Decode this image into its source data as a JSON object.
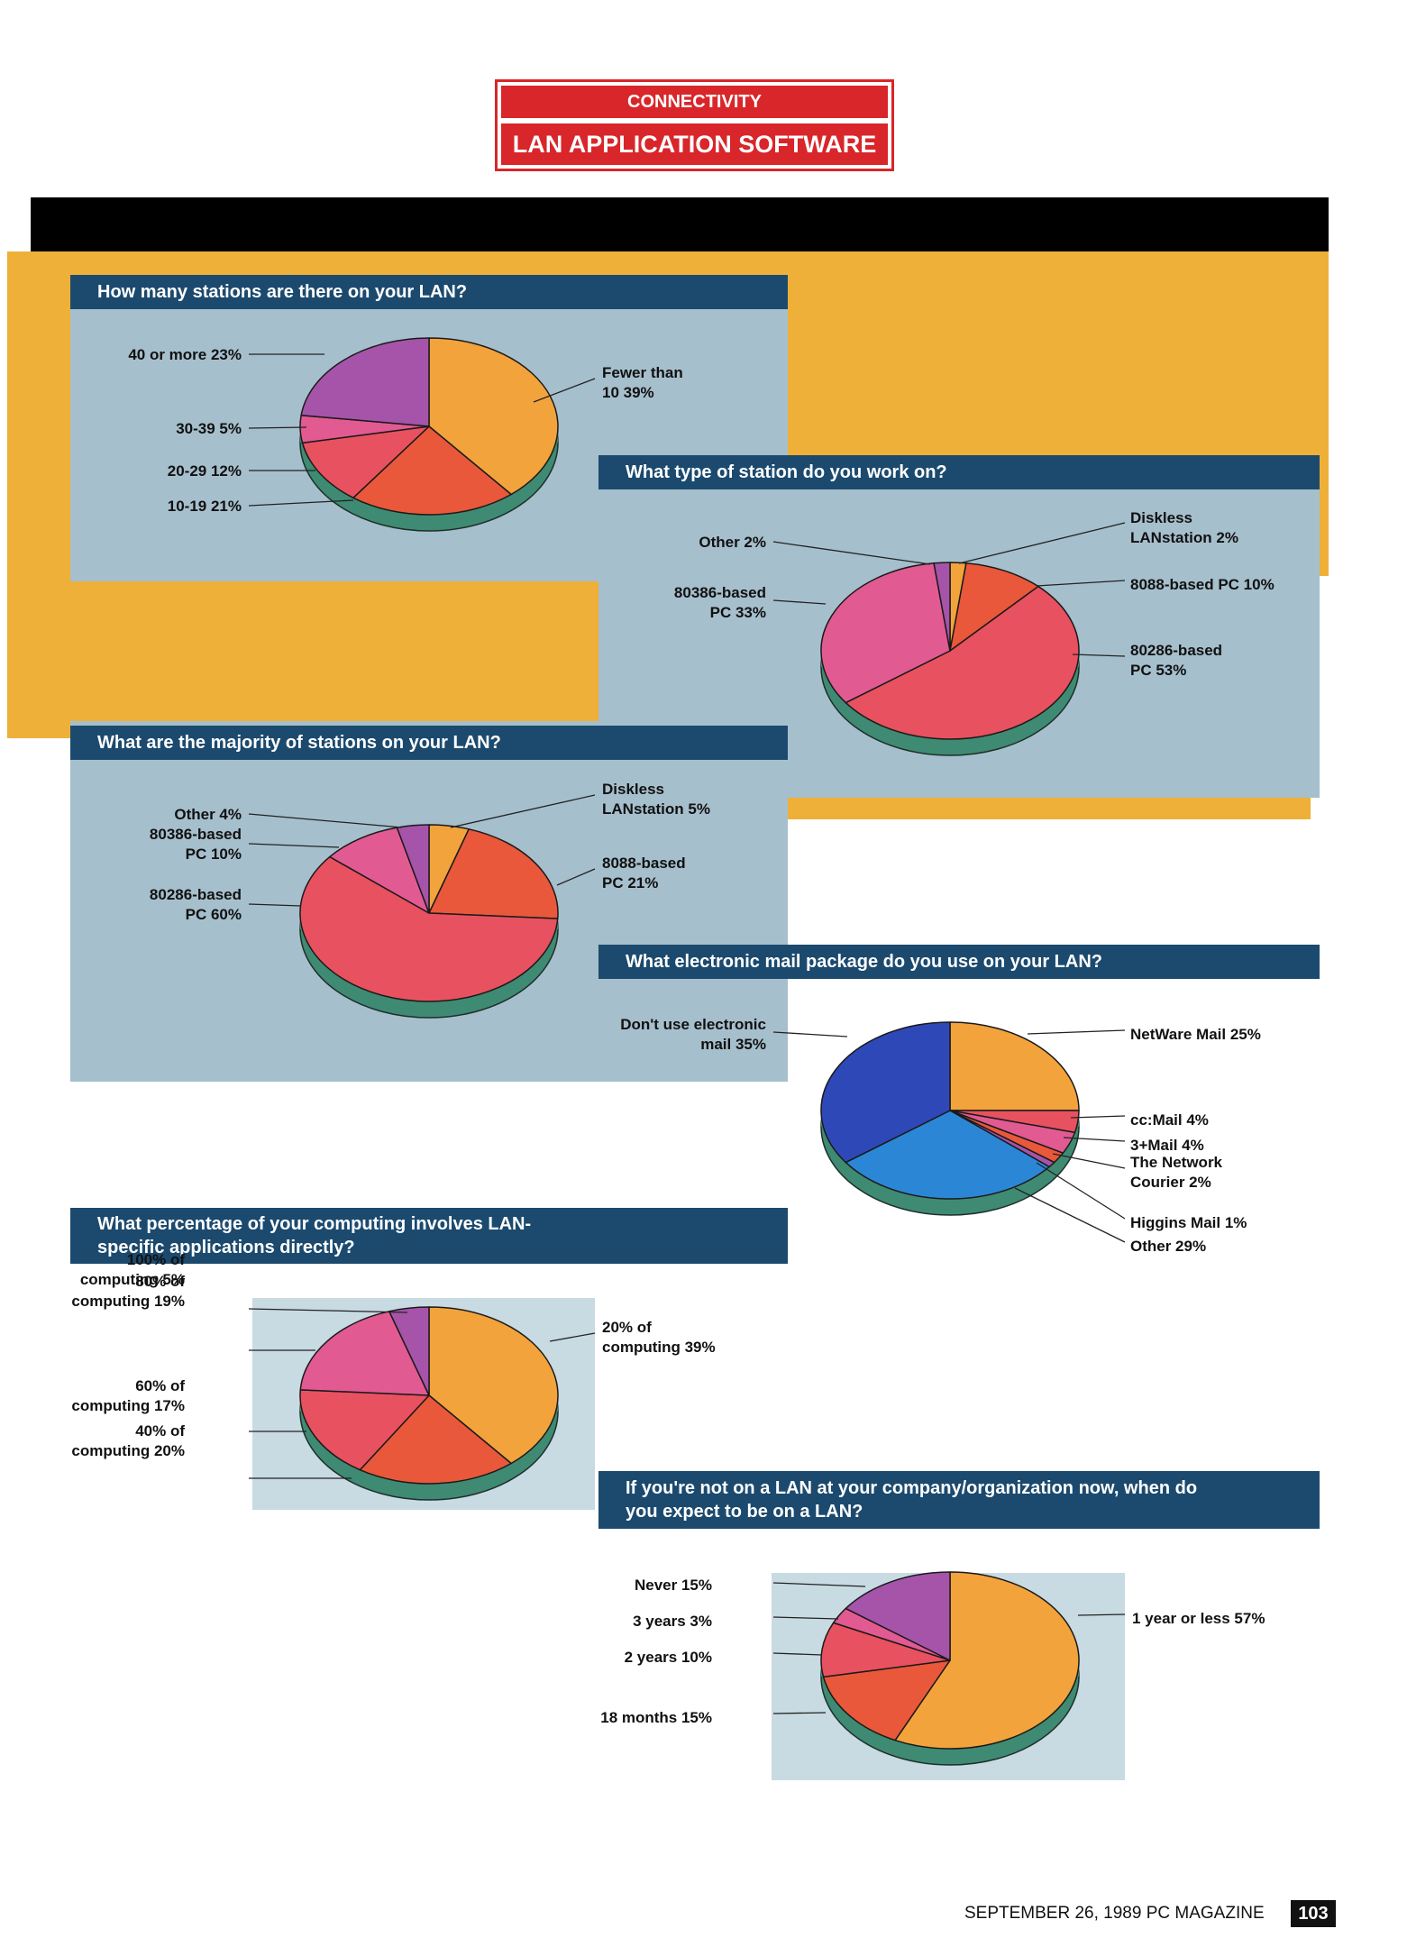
{
  "header": {
    "section": "CONNECTIVITY",
    "title": "LAN APPLICATION SOFTWARE"
  },
  "footer": {
    "text": "SEPTEMBER 26, 1989  PC MAGAZINE",
    "page": "103"
  },
  "colors": {
    "orange": "#f2a33c",
    "redorange": "#e9583a",
    "red": "#e8515f",
    "pink": "#e25a92",
    "purple": "#a554a9",
    "blue": "#2f48b8",
    "lightblue": "#2c86d6",
    "shadow": "#3f8a72",
    "bar": "#1c4a6e",
    "grey": "#a6bfcc",
    "panel": "#eeb038"
  },
  "chart_data": [
    {
      "type": "pie",
      "title": "How many stations are there on your LAN?",
      "categories": [
        "Fewer than 10",
        "10-19",
        "20-29",
        "30-39",
        "40 or more"
      ],
      "values": [
        39,
        21,
        12,
        5,
        23
      ],
      "labels": [
        {
          "text": [
            "Fewer than",
            "10  39%"
          ]
        },
        {
          "text": [
            "10-19  21%"
          ]
        },
        {
          "text": [
            "20-29  12%"
          ]
        },
        {
          "text": [
            "30-39  5%"
          ]
        },
        {
          "text": [
            "40 or more  23%"
          ]
        }
      ]
    },
    {
      "type": "pie",
      "title": "What type of station do you work on?",
      "categories": [
        "Diskless LANstation",
        "8088-based PC",
        "80286-based PC",
        "80386-based PC",
        "Other"
      ],
      "values": [
        2,
        10,
        53,
        33,
        2
      ],
      "labels": [
        {
          "text": [
            "Diskless",
            "LANstation  2%"
          ]
        },
        {
          "text": [
            "8088-based PC  10%"
          ]
        },
        {
          "text": [
            "80286-based",
            "PC  53%"
          ]
        },
        {
          "text": [
            "80386-based",
            "PC  33%"
          ]
        },
        {
          "text": [
            "Other  2%"
          ]
        }
      ]
    },
    {
      "type": "pie",
      "title": "What are the majority of stations on your LAN?",
      "categories": [
        "Diskless LANstation",
        "8088-based PC",
        "80286-based PC",
        "80386-based PC",
        "Other"
      ],
      "values": [
        5,
        21,
        60,
        10,
        4
      ],
      "labels": [
        {
          "text": [
            "Diskless",
            "LANstation  5%"
          ]
        },
        {
          "text": [
            "8088-based",
            "PC  21%"
          ]
        },
        {
          "text": [
            "80286-based",
            "PC  60%"
          ]
        },
        {
          "text": [
            "80386-based",
            "PC  10%"
          ]
        },
        {
          "text": [
            "Other  4%"
          ]
        }
      ]
    },
    {
      "type": "pie",
      "title": "What electronic mail package do you use on your LAN?",
      "categories": [
        "NetWare Mail",
        "cc:Mail",
        "3+Mail",
        "The Network Courier",
        "Higgins Mail",
        "Other",
        "Don't use electronic mail"
      ],
      "values": [
        25,
        4,
        4,
        2,
        1,
        29,
        35
      ],
      "labels": [
        {
          "text": [
            "NetWare Mail  25%"
          ]
        },
        {
          "text": [
            "cc:Mail  4%"
          ]
        },
        {
          "text": [
            "3+Mail  4%"
          ]
        },
        {
          "text": [
            "The Network",
            "Courier  2%"
          ]
        },
        {
          "text": [
            "Higgins Mail  1%"
          ]
        },
        {
          "text": [
            "Other  29%"
          ]
        },
        {
          "text": [
            "Don't use electronic",
            "mail  35%"
          ]
        }
      ]
    },
    {
      "type": "pie",
      "title": "What percentage of your computing involves LAN-specific applications directly?",
      "categories": [
        "20% of computing",
        "40% of computing",
        "60% of computing",
        "80% of computing",
        "100% of computing"
      ],
      "values": [
        39,
        20,
        17,
        19,
        5
      ],
      "labels": [
        {
          "text": [
            "20% of",
            "computing  39%"
          ]
        },
        {
          "text": [
            "40% of",
            "computing  20%"
          ]
        },
        {
          "text": [
            "60% of",
            "computing  17%"
          ]
        },
        {
          "text": [
            "80% of",
            "computing  19%"
          ]
        },
        {
          "text": [
            "100% of",
            "computing  5%"
          ]
        }
      ]
    },
    {
      "type": "pie",
      "title": "If you're not on a LAN at your company/organization now, when do you expect to be on a LAN?",
      "categories": [
        "1 year or less",
        "18 months",
        "2 years",
        "3 years",
        "Never"
      ],
      "values": [
        57,
        15,
        10,
        3,
        15
      ],
      "labels": [
        {
          "text": [
            "1 year or less  57%"
          ]
        },
        {
          "text": [
            "18 months  15%"
          ]
        },
        {
          "text": [
            "2 years  10%"
          ]
        },
        {
          "text": [
            "3 years  3%"
          ]
        },
        {
          "text": [
            "Never  15%"
          ]
        }
      ]
    }
  ]
}
